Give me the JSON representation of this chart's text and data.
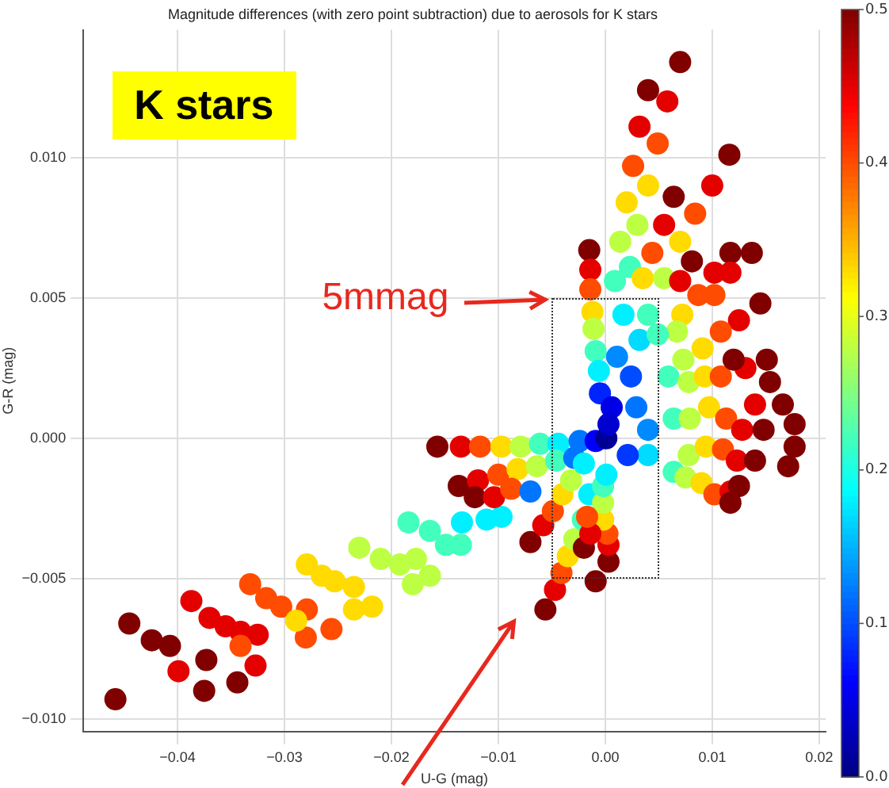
{
  "chart_data": {
    "type": "scatter",
    "title": "Magnitude differences (with zero point subtraction) due to aerosols for K stars",
    "xlabel": "U-G (mag)",
    "ylabel": "G-R (mag)",
    "annotations": [
      "K stars",
      "5mmag"
    ],
    "xlim": [
      -0.0488,
      0.0206
    ],
    "ylim": [
      -0.01045,
      0.01455
    ],
    "xticks": [
      {
        "value": -0.04,
        "label": "−0.04"
      },
      {
        "value": -0.03,
        "label": "−0.03"
      },
      {
        "value": -0.02,
        "label": "−0.02"
      },
      {
        "value": -0.01,
        "label": "−0.01"
      },
      {
        "value": 0,
        "label": "0.00"
      },
      {
        "value": 0.01,
        "label": "0.01"
      },
      {
        "value": 0.02,
        "label": "0.02"
      }
    ],
    "yticks": [
      {
        "value": -0.01,
        "label": "−0.010"
      },
      {
        "value": -0.005,
        "label": "−0.005"
      },
      {
        "value": 0,
        "label": "0.000"
      },
      {
        "value": 0.005,
        "label": "0.005"
      },
      {
        "value": 0.01,
        "label": "0.010"
      }
    ],
    "clim": [
      0,
      0.5
    ],
    "cticks": [
      {
        "value": 0,
        "label": "0.0"
      },
      {
        "value": 0.1,
        "label": "0.1"
      },
      {
        "value": 0.2,
        "label": "0.2"
      },
      {
        "value": 0.3,
        "label": "0.3"
      },
      {
        "value": 0.4,
        "label": "0.4"
      },
      {
        "value": 0.5,
        "label": "0.5"
      }
    ],
    "grid": true,
    "legend": false,
    "marker": "circle",
    "x": [
      -0.0458,
      -0.0445,
      -0.0424,
      -0.0407,
      -0.0399,
      -0.0373,
      -0.0375,
      -0.0344,
      -0.0327,
      -0.0387,
      -0.037,
      -0.0355,
      -0.0341,
      -0.0325,
      -0.0341,
      -0.0332,
      -0.0317,
      -0.0303,
      -0.0279,
      -0.028,
      -0.0256,
      -0.0289,
      -0.0279,
      -0.0265,
      -0.0253,
      -0.0235,
      -0.0235,
      -0.0218,
      -0.023,
      -0.021,
      -0.0192,
      -0.0177,
      -0.018,
      -0.0164,
      -0.0184,
      -0.0164,
      -0.0149,
      -0.0135,
      -0.0134,
      -0.0111,
      -0.0097,
      -0.0157,
      -0.0135,
      -0.0117,
      -0.0097,
      -0.0079,
      -0.0061,
      -0.0044,
      -0.0024,
      -0.0009,
      -0.0137,
      -0.0119,
      -0.01,
      -0.0082,
      -0.0064,
      -0.0046,
      -0.0029,
      -0.0122,
      -0.0104,
      -0.0088,
      -0.007,
      -0.007,
      -0.0058,
      -0.0049,
      -0.004,
      -0.0032,
      -0.002,
      -0.0056,
      -0.0047,
      -0.0041,
      -0.0035,
      -0.0029,
      -0.0021,
      -0.0015,
      -0.002,
      -0.0009,
      0.0003,
      0.0003,
      0.0002,
      -0.0002,
      -0.0002,
      -0.0002,
      0.0001,
      -0.0014,
      -0.0017,
      0.007,
      0.004,
      0.0058,
      0.0032,
      0.0049,
      0.0026,
      0.004,
      0.002,
      0.003,
      0.0014,
      0.0023,
      0.0009,
      0.0116,
      0.01,
      0.0084,
      0.007,
      0.0064,
      0.0055,
      0.0044,
      0.0035,
      0.0055,
      0.0081,
      0.007,
      0.0117,
      0.0137,
      0.0102,
      0.0117,
      0.0087,
      0.0102,
      0.0145,
      0.0125,
      0.0072,
      0.0108,
      0.0091,
      0.0067,
      0.0073,
      -0.0015,
      -0.0014,
      -0.0014,
      -0.0012,
      -0.0011,
      -0.0009,
      -0.0006,
      -0.0005,
      0.0006,
      0.0001,
      0.0003,
      0.0011,
      0.0017,
      0.0032,
      0.0024,
      0.004,
      0.004,
      0.0021,
      0.004,
      0.0049,
      0.0059,
      0.0064,
      0.0064,
      0.0029,
      0.0078,
      0.0079,
      0.0078,
      0.0075,
      0.0093,
      0.0097,
      0.0094,
      0.009,
      0.0108,
      0.0113,
      0.011,
      0.0102,
      0.0131,
      0.0128,
      0.0123,
      0.0117,
      0.014,
      0.012,
      0.0151,
      0.0154,
      0.0166,
      0.0177,
      0.0177,
      0.0171,
      0.0148,
      0.014,
      0.0125,
      0.0117
    ],
    "values": [
      -0.0093,
      -0.0066,
      -0.0072,
      -0.0074,
      -0.0083,
      -0.0079,
      -0.009,
      -0.0087,
      -0.0081,
      -0.0058,
      -0.0064,
      -0.0067,
      -0.0069,
      -0.007,
      -0.0074,
      -0.0052,
      -0.0057,
      -0.006,
      -0.0061,
      -0.0071,
      -0.0068,
      -0.0065,
      -0.0045,
      -0.0049,
      -0.0051,
      -0.0053,
      -0.0061,
      -0.006,
      -0.0039,
      -0.0043,
      -0.0045,
      -0.0043,
      -0.0052,
      -0.0049,
      -0.003,
      -0.0033,
      -0.0038,
      -0.0038,
      -0.003,
      -0.0029,
      -0.0028,
      -0.0003,
      -0.0003,
      -0.0003,
      -0.0003,
      -0.0003,
      -0.0002,
      -0.0002,
      -0.0001,
      -0.0001,
      -0.0017,
      -0.0015,
      -0.0013,
      -0.0011,
      -0.001,
      -0.0008,
      -0.0007,
      -0.0021,
      -0.0021,
      -0.0018,
      -0.0019,
      -0.0037,
      -0.0031,
      -0.0026,
      -0.002,
      -0.0015,
      -0.0009,
      -0.0061,
      -0.0054,
      -0.0048,
      -0.0042,
      -0.0036,
      -0.0029,
      -0.002,
      -0.0039,
      -0.0051,
      -0.0044,
      -0.0038,
      -0.0034,
      -0.0029,
      -0.0023,
      -0.0017,
      -0.0013,
      -0.0034,
      -0.0028,
      0.0134,
      0.0124,
      0.012,
      0.0111,
      0.0105,
      0.0097,
      0.009,
      0.0084,
      0.0076,
      0.007,
      0.0061,
      0.0056,
      0.0101,
      0.009,
      0.008,
      0.007,
      0.0086,
      0.0076,
      0.0066,
      0.0057,
      0.0057,
      0.0063,
      0.0056,
      0.0066,
      0.0066,
      0.0059,
      0.0059,
      0.0051,
      0.0051,
      0.0048,
      0.0042,
      0.0044,
      0.0038,
      0.0032,
      0.0038,
      0.0028,
      0.0067,
      0.006,
      0.0053,
      0.0045,
      0.0039,
      0.0031,
      0.0024,
      0.0016,
      0.0011,
      0,
      0.0005,
      0.0029,
      0.0044,
      0.0035,
      0.0022,
      0.0003,
      -0.0006,
      -0.0006,
      0.0044,
      0.0037,
      0.0022,
      0.0007,
      -0.0012,
      0.0011,
      0.002,
      0.0007,
      -0.0006,
      -0.0014,
      0.0022,
      0.0011,
      -0.0003,
      -0.0016,
      0.0022,
      0.0007,
      -0.0004,
      -0.002,
      0.0025,
      0.0003,
      -0.0008,
      -0.0019,
      0.0012,
      0.0028,
      0.0028,
      0.002,
      0.0012,
      0.0005,
      -0.0003,
      -0.001,
      0.0003,
      -0.0008,
      -0.0017,
      -0.0023
    ],
    "cvalues": [
      0.5,
      0.5,
      0.5,
      0.5,
      0.45,
      0.5,
      0.5,
      0.5,
      0.45,
      0.45,
      0.45,
      0.45,
      0.45,
      0.45,
      0.4,
      0.4,
      0.4,
      0.4,
      0.4,
      0.4,
      0.4,
      0.33,
      0.33,
      0.33,
      0.33,
      0.33,
      0.33,
      0.33,
      0.28,
      0.28,
      0.28,
      0.28,
      0.28,
      0.28,
      0.22,
      0.22,
      0.22,
      0.22,
      0.18,
      0.18,
      0.18,
      0.5,
      0.45,
      0.4,
      0.33,
      0.28,
      0.22,
      0.18,
      0.12,
      0.06,
      0.5,
      0.45,
      0.4,
      0.33,
      0.28,
      0.22,
      0.12,
      0.5,
      0.45,
      0.4,
      0.12,
      0.5,
      0.45,
      0.4,
      0.33,
      0.28,
      0.18,
      0.5,
      0.45,
      0.4,
      0.33,
      0.28,
      0.22,
      0.18,
      0.5,
      0.5,
      0.5,
      0.45,
      0.4,
      0.33,
      0.28,
      0.22,
      0.18,
      0.45,
      0.4,
      0.5,
      0.5,
      0.45,
      0.45,
      0.4,
      0.4,
      0.33,
      0.33,
      0.28,
      0.28,
      0.22,
      0.22,
      0.5,
      0.45,
      0.4,
      0.33,
      0.5,
      0.45,
      0.4,
      0.33,
      0.28,
      0.5,
      0.45,
      0.5,
      0.5,
      0.45,
      0.45,
      0.4,
      0.4,
      0.5,
      0.45,
      0.33,
      0.4,
      0.33,
      0.28,
      0.28,
      0.5,
      0.45,
      0.4,
      0.33,
      0.28,
      0.22,
      0.18,
      0.08,
      0.05,
      0.01,
      0.04,
      0.13,
      0.18,
      0.17,
      0.1,
      0.13,
      0.17,
      0.09,
      0.22,
      0.22,
      0.22,
      0.22,
      0.22,
      0.12,
      0.28,
      0.28,
      0.28,
      0.28,
      0.33,
      0.33,
      0.33,
      0.33,
      0.4,
      0.4,
      0.4,
      0.4,
      0.45,
      0.45,
      0.45,
      0.45,
      0.45,
      0.5,
      0.5,
      0.5,
      0.5,
      0.5,
      0.5,
      0.5,
      0.5,
      0.5,
      0.5,
      0.5
    ]
  }
}
